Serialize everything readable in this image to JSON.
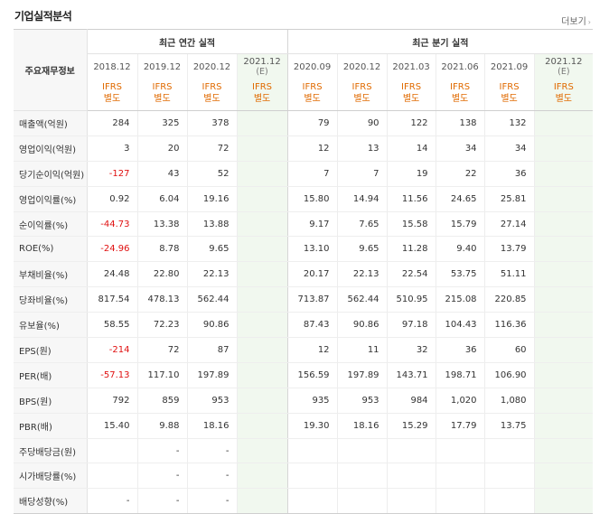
{
  "title": "기업실적분석",
  "more_label": "더보기",
  "group_annual": "최근 연간 실적",
  "group_quarter": "최근 분기 실적",
  "row_header_label": "주요재무정보",
  "ifrs_label": "IFRS",
  "basis_label": "별도",
  "estimate_label": "(E)",
  "periods": [
    "2018.12",
    "2019.12",
    "2020.12",
    "2021.12",
    "2020.09",
    "2020.12",
    "2021.03",
    "2021.06",
    "2021.09",
    "2021.12"
  ],
  "rows": [
    {
      "label": "매출액(억원)",
      "values": [
        "284",
        "325",
        "378",
        "",
        "79",
        "90",
        "122",
        "138",
        "132",
        ""
      ]
    },
    {
      "label": "영업이익(억원)",
      "values": [
        "3",
        "20",
        "72",
        "",
        "12",
        "13",
        "14",
        "34",
        "34",
        ""
      ]
    },
    {
      "label": "당기순이익(억원)",
      "values": [
        "-127",
        "43",
        "52",
        "",
        "7",
        "7",
        "19",
        "22",
        "36",
        ""
      ]
    },
    {
      "label": "영업이익률(%)",
      "values": [
        "0.92",
        "6.04",
        "19.16",
        "",
        "15.80",
        "14.94",
        "11.56",
        "24.65",
        "25.81",
        ""
      ]
    },
    {
      "label": "순이익률(%)",
      "values": [
        "-44.73",
        "13.38",
        "13.88",
        "",
        "9.17",
        "7.65",
        "15.58",
        "15.79",
        "27.14",
        ""
      ]
    },
    {
      "label": "ROE(%)",
      "values": [
        "-24.96",
        "8.78",
        "9.65",
        "",
        "13.10",
        "9.65",
        "11.28",
        "9.40",
        "13.79",
        ""
      ]
    },
    {
      "label": "부채비율(%)",
      "values": [
        "24.48",
        "22.80",
        "22.13",
        "",
        "20.17",
        "22.13",
        "22.54",
        "53.75",
        "51.11",
        ""
      ]
    },
    {
      "label": "당좌비율(%)",
      "values": [
        "817.54",
        "478.13",
        "562.44",
        "",
        "713.87",
        "562.44",
        "510.95",
        "215.08",
        "220.85",
        ""
      ]
    },
    {
      "label": "유보율(%)",
      "values": [
        "58.55",
        "72.23",
        "90.86",
        "",
        "87.43",
        "90.86",
        "97.18",
        "104.43",
        "116.36",
        ""
      ]
    },
    {
      "label": "EPS(원)",
      "values": [
        "-214",
        "72",
        "87",
        "",
        "12",
        "11",
        "32",
        "36",
        "60",
        ""
      ]
    },
    {
      "label": "PER(배)",
      "values": [
        "-57.13",
        "117.10",
        "197.89",
        "",
        "156.59",
        "197.89",
        "143.71",
        "198.71",
        "106.90",
        ""
      ]
    },
    {
      "label": "BPS(원)",
      "values": [
        "792",
        "859",
        "953",
        "",
        "935",
        "953",
        "984",
        "1,020",
        "1,080",
        ""
      ]
    },
    {
      "label": "PBR(배)",
      "values": [
        "15.40",
        "9.88",
        "18.16",
        "",
        "19.30",
        "18.16",
        "15.29",
        "17.79",
        "13.75",
        ""
      ]
    },
    {
      "label": "주당배당금(원)",
      "values": [
        "",
        "-",
        "-",
        "",
        "",
        "",
        "",
        "",
        "",
        ""
      ]
    },
    {
      "label": "시가배당률(%)",
      "values": [
        "",
        "-",
        "-",
        "",
        "",
        "",
        "",
        "",
        "",
        ""
      ]
    },
    {
      "label": "배당성향(%)",
      "values": [
        "-",
        "-",
        "-",
        "",
        "",
        "",
        "",
        "",
        "",
        ""
      ]
    }
  ],
  "colors": {
    "negative": "#e01010",
    "ifrs": "#e06a00",
    "estimate_bg": "#f1f8ef"
  }
}
